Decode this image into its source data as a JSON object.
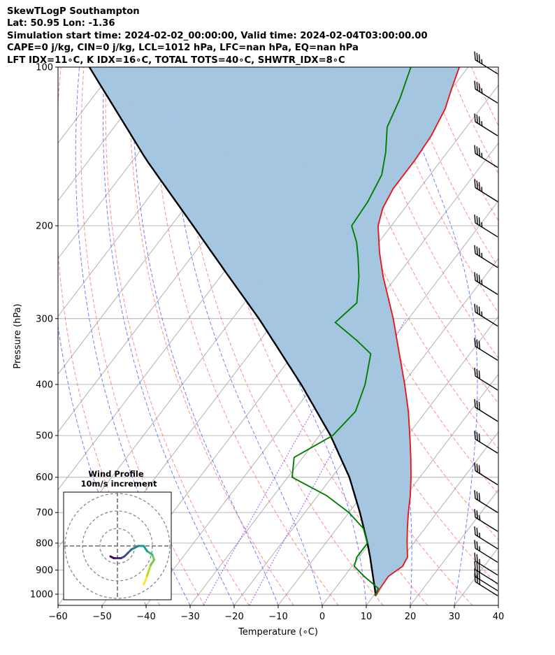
{
  "header": {
    "line1": "SkewTLogP Southampton",
    "line2": "Lat: 50.95   Lon: -1.36",
    "line3": "Simulation start time: 2024-02-02_00:00:00, Valid time: 2024-02-04T03:00:00.00",
    "line4": "CAPE=0 j/kg, CIN=0 j/kg, LCL=1012 hPa, LFC=nan hPa, EQ=nan hPa",
    "line5": "LFT IDX=11∘C, K IDX=16∘C, TOTAL TOTS=40∘C, SHWTR_IDX=8∘C"
  },
  "colors": {
    "temperature": "#e41a1c",
    "dewpoint": "#008000",
    "parcel": "#000000",
    "shade": "#a3c5e0",
    "dry_adiabat": "#ff6666",
    "moist_adiabat": "#4d5eff",
    "isotherm": "#a9a9a9",
    "mixing_ratio": "#9b30ff"
  },
  "chart_data": {
    "type": "skewt",
    "title": "SkewTLogP Southampton",
    "xlabel": "Temperature (∘C)",
    "ylabel": "Pressure (hPa)",
    "xlim": [
      -60,
      40
    ],
    "ylim": [
      1050,
      100
    ],
    "x_ticks": [
      "−60",
      "−50",
      "−40",
      "−30",
      "−20",
      "−10",
      "0",
      "10",
      "20",
      "30",
      "40"
    ],
    "y_ticks": [
      "100",
      "200",
      "300",
      "400",
      "500",
      "600",
      "700",
      "800",
      "900",
      "1000"
    ],
    "y_tick_values": [
      100,
      200,
      300,
      400,
      500,
      600,
      700,
      800,
      900,
      1000
    ],
    "y_scale": "log",
    "grid": true,
    "temperature_profile": [
      {
        "p": 1007,
        "t": 10.5
      },
      {
        "p": 975,
        "t": 10.2
      },
      {
        "p": 925,
        "t": 10.0
      },
      {
        "p": 885,
        "t": 11.5
      },
      {
        "p": 850,
        "t": 11.0
      },
      {
        "p": 800,
        "t": 8.5
      },
      {
        "p": 750,
        "t": 6.0
      },
      {
        "p": 700,
        "t": 3.5
      },
      {
        "p": 650,
        "t": 1.0
      },
      {
        "p": 600,
        "t": -2.0
      },
      {
        "p": 550,
        "t": -5.5
      },
      {
        "p": 500,
        "t": -9.5
      },
      {
        "p": 450,
        "t": -14.0
      },
      {
        "p": 400,
        "t": -19.5
      },
      {
        "p": 350,
        "t": -26.0
      },
      {
        "p": 300,
        "t": -33.5
      },
      {
        "p": 250,
        "t": -43.0
      },
      {
        "p": 225,
        "t": -48.0
      },
      {
        "p": 200,
        "t": -53.0
      },
      {
        "p": 185,
        "t": -55.0
      },
      {
        "p": 170,
        "t": -56.0
      },
      {
        "p": 150,
        "t": -56.0
      },
      {
        "p": 135,
        "t": -56.5
      },
      {
        "p": 120,
        "t": -58.0
      },
      {
        "p": 110,
        "t": -60.0
      },
      {
        "p": 100,
        "t": -62.0
      }
    ],
    "dewpoint_profile": [
      {
        "p": 1007,
        "t": 10.3
      },
      {
        "p": 975,
        "t": 9.8
      },
      {
        "p": 925,
        "t": 4.5
      },
      {
        "p": 885,
        "t": 0.5
      },
      {
        "p": 850,
        "t": -0.5
      },
      {
        "p": 800,
        "t": -0.5
      },
      {
        "p": 750,
        "t": -4.0
      },
      {
        "p": 700,
        "t": -10.0
      },
      {
        "p": 650,
        "t": -18.0
      },
      {
        "p": 600,
        "t": -29.0
      },
      {
        "p": 550,
        "t": -32.0
      },
      {
        "p": 500,
        "t": -27.0
      },
      {
        "p": 450,
        "t": -26.0
      },
      {
        "p": 400,
        "t": -28.5
      },
      {
        "p": 350,
        "t": -32.5
      },
      {
        "p": 330,
        "t": -38.0
      },
      {
        "p": 305,
        "t": -46.0
      },
      {
        "p": 280,
        "t": -44.5
      },
      {
        "p": 250,
        "t": -48.5
      },
      {
        "p": 230,
        "t": -52.0
      },
      {
        "p": 215,
        "t": -55.0
      },
      {
        "p": 200,
        "t": -59.0
      },
      {
        "p": 180,
        "t": -59.5
      },
      {
        "p": 160,
        "t": -61.0
      },
      {
        "p": 145,
        "t": -64.0
      },
      {
        "p": 130,
        "t": -68.0
      },
      {
        "p": 115,
        "t": -70.0
      },
      {
        "p": 100,
        "t": -73.0
      }
    ],
    "parcel_profile": [
      {
        "p": 1007,
        "t": 10.5
      },
      {
        "p": 975,
        "t": 9.0
      },
      {
        "p": 925,
        "t": 6.5
      },
      {
        "p": 850,
        "t": 2.5
      },
      {
        "p": 800,
        "t": -0.5
      },
      {
        "p": 700,
        "t": -7.5
      },
      {
        "p": 600,
        "t": -16.0
      },
      {
        "p": 500,
        "t": -27.5
      },
      {
        "p": 400,
        "t": -43.0
      },
      {
        "p": 300,
        "t": -64.0
      },
      {
        "p": 250,
        "t": -78.0
      },
      {
        "p": 200,
        "t": -95.0
      },
      {
        "p": 150,
        "t": -117.0
      },
      {
        "p": 100,
        "t": -146.0
      }
    ],
    "wind_barbs": [
      {
        "p": 1007,
        "speed_kt": 25
      },
      {
        "p": 985,
        "speed_kt": 30
      },
      {
        "p": 955,
        "speed_kt": 30
      },
      {
        "p": 920,
        "speed_kt": 25
      },
      {
        "p": 870,
        "speed_kt": 25
      },
      {
        "p": 820,
        "speed_kt": 25
      },
      {
        "p": 760,
        "speed_kt": 25
      },
      {
        "p": 700,
        "speed_kt": 30
      },
      {
        "p": 620,
        "speed_kt": 30
      },
      {
        "p": 540,
        "speed_kt": 30
      },
      {
        "p": 470,
        "speed_kt": 30
      },
      {
        "p": 410,
        "speed_kt": 30
      },
      {
        "p": 360,
        "speed_kt": 30
      },
      {
        "p": 310,
        "speed_kt": 35
      },
      {
        "p": 270,
        "speed_kt": 35
      },
      {
        "p": 240,
        "speed_kt": 35
      },
      {
        "p": 210,
        "speed_kt": 35
      },
      {
        "p": 180,
        "speed_kt": 35
      },
      {
        "p": 155,
        "speed_kt": 35
      },
      {
        "p": 135,
        "speed_kt": 35
      },
      {
        "p": 117,
        "speed_kt": 35
      },
      {
        "p": 103,
        "speed_kt": 35
      }
    ],
    "hodograph": {
      "title": "Wind Profile",
      "subtitle": "10m/s increment",
      "points": [
        [
          15,
          22
        ],
        [
          16,
          20
        ],
        [
          17,
          17
        ],
        [
          18,
          14
        ],
        [
          19,
          11
        ],
        [
          21,
          8
        ],
        [
          20,
          5
        ],
        [
          17,
          3
        ],
        [
          15,
          0
        ],
        [
          12,
          0
        ],
        [
          10,
          1
        ],
        [
          8,
          2
        ],
        [
          6,
          4
        ],
        [
          4,
          6
        ],
        [
          2,
          7
        ],
        [
          0,
          7
        ],
        [
          -2,
          7
        ],
        [
          -4,
          6
        ]
      ]
    }
  }
}
